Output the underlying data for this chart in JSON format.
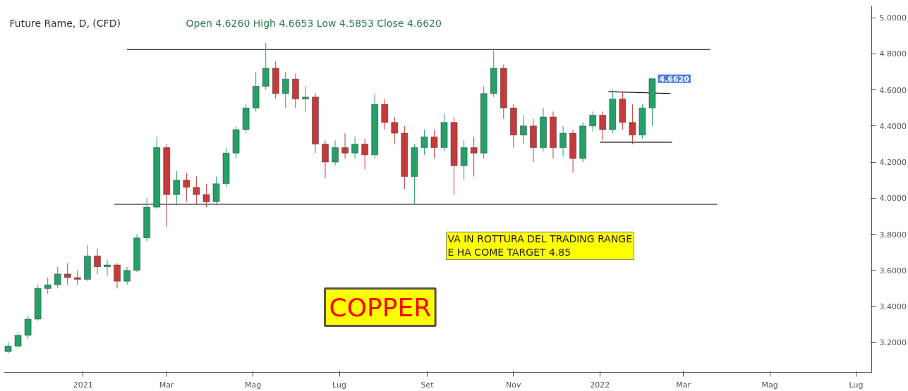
{
  "chart_data": {
    "type": "candlestick",
    "title": "Future Rame, D, (CFD)",
    "x": [
      "2020-11-09",
      "2020-11-16",
      "2020-11-23",
      "2020-11-30",
      "2020-12-07",
      "2020-12-14",
      "2020-12-21",
      "2020-12-28",
      "2021-01-04",
      "2021-01-11",
      "2021-01-18",
      "2021-01-25",
      "2021-02-01",
      "2021-02-08",
      "2021-02-15",
      "2021-02-22",
      "2021-03-01",
      "2021-03-08",
      "2021-03-15",
      "2021-03-22",
      "2021-03-29",
      "2021-04-05",
      "2021-04-12",
      "2021-04-19",
      "2021-04-26",
      "2021-05-03",
      "2021-05-10",
      "2021-05-17",
      "2021-05-24",
      "2021-05-31",
      "2021-06-07",
      "2021-06-14",
      "2021-06-21",
      "2021-06-28",
      "2021-07-05",
      "2021-07-12",
      "2021-07-19",
      "2021-07-26",
      "2021-08-02",
      "2021-08-09",
      "2021-08-16",
      "2021-08-23",
      "2021-08-30",
      "2021-09-06",
      "2021-09-13",
      "2021-09-20",
      "2021-09-27",
      "2021-10-04",
      "2021-10-11",
      "2021-10-18",
      "2021-10-25",
      "2021-11-01",
      "2021-11-08",
      "2021-11-15",
      "2021-11-22",
      "2021-11-29",
      "2021-12-06",
      "2021-12-13",
      "2021-12-20",
      "2021-12-27",
      "2022-01-03",
      "2022-01-10",
      "2022-01-17",
      "2022-01-24",
      "2022-01-31",
      "2022-02-07"
    ],
    "ohlc": [
      [
        3.15,
        3.2,
        3.14,
        3.18
      ],
      [
        3.18,
        3.26,
        3.17,
        3.24
      ],
      [
        3.24,
        3.35,
        3.22,
        3.33
      ],
      [
        3.33,
        3.52,
        3.32,
        3.5
      ],
      [
        3.5,
        3.56,
        3.47,
        3.52
      ],
      [
        3.52,
        3.62,
        3.5,
        3.58
      ],
      [
        3.58,
        3.64,
        3.52,
        3.56
      ],
      [
        3.56,
        3.6,
        3.52,
        3.55
      ],
      [
        3.55,
        3.74,
        3.54,
        3.68
      ],
      [
        3.68,
        3.72,
        3.58,
        3.62
      ],
      [
        3.62,
        3.66,
        3.57,
        3.63
      ],
      [
        3.63,
        3.64,
        3.5,
        3.54
      ],
      [
        3.54,
        3.62,
        3.52,
        3.6
      ],
      [
        3.6,
        3.8,
        3.59,
        3.78
      ],
      [
        3.78,
        4.0,
        3.76,
        3.95
      ],
      [
        3.95,
        4.34,
        3.94,
        4.28
      ],
      [
        4.28,
        4.3,
        3.84,
        4.02
      ],
      [
        4.02,
        4.15,
        3.96,
        4.1
      ],
      [
        4.1,
        4.14,
        3.98,
        4.06
      ],
      [
        4.06,
        4.12,
        3.97,
        4.02
      ],
      [
        4.02,
        4.08,
        3.95,
        3.98
      ],
      [
        3.98,
        4.12,
        3.97,
        4.08
      ],
      [
        4.08,
        4.28,
        4.06,
        4.25
      ],
      [
        4.25,
        4.4,
        4.22,
        4.38
      ],
      [
        4.38,
        4.52,
        4.36,
        4.5
      ],
      [
        4.5,
        4.7,
        4.48,
        4.62
      ],
      [
        4.62,
        4.86,
        4.6,
        4.72
      ],
      [
        4.72,
        4.76,
        4.55,
        4.58
      ],
      [
        4.58,
        4.7,
        4.5,
        4.66
      ],
      [
        4.66,
        4.69,
        4.5,
        4.55
      ],
      [
        4.55,
        4.62,
        4.48,
        4.56
      ],
      [
        4.56,
        4.58,
        4.25,
        4.3
      ],
      [
        4.3,
        4.32,
        4.11,
        4.2
      ],
      [
        4.2,
        4.32,
        4.18,
        4.28
      ],
      [
        4.28,
        4.36,
        4.22,
        4.25
      ],
      [
        4.25,
        4.34,
        4.22,
        4.3
      ],
      [
        4.3,
        4.33,
        4.16,
        4.24
      ],
      [
        4.24,
        4.58,
        4.22,
        4.52
      ],
      [
        4.52,
        4.55,
        4.38,
        4.42
      ],
      [
        4.42,
        4.45,
        4.3,
        4.36
      ],
      [
        4.36,
        4.4,
        4.05,
        4.12
      ],
      [
        4.12,
        4.3,
        3.97,
        4.28
      ],
      [
        4.28,
        4.38,
        4.24,
        4.34
      ],
      [
        4.34,
        4.38,
        4.22,
        4.28
      ],
      [
        4.28,
        4.47,
        4.26,
        4.42
      ],
      [
        4.42,
        4.45,
        4.02,
        4.18
      ],
      [
        4.18,
        4.32,
        4.1,
        4.28
      ],
      [
        4.28,
        4.34,
        4.12,
        4.25
      ],
      [
        4.25,
        4.62,
        4.22,
        4.58
      ],
      [
        4.58,
        4.82,
        4.56,
        4.72
      ],
      [
        4.72,
        4.74,
        4.44,
        4.5
      ],
      [
        4.5,
        4.52,
        4.28,
        4.35
      ],
      [
        4.35,
        4.46,
        4.3,
        4.4
      ],
      [
        4.4,
        4.44,
        4.2,
        4.28
      ],
      [
        4.28,
        4.5,
        4.26,
        4.45
      ],
      [
        4.45,
        4.48,
        4.22,
        4.28
      ],
      [
        4.28,
        4.4,
        4.23,
        4.36
      ],
      [
        4.36,
        4.38,
        4.14,
        4.22
      ],
      [
        4.22,
        4.42,
        4.2,
        4.4
      ],
      [
        4.4,
        4.48,
        4.37,
        4.46
      ],
      [
        4.46,
        4.48,
        4.32,
        4.38
      ],
      [
        4.38,
        4.6,
        4.36,
        4.55
      ],
      [
        4.55,
        4.59,
        4.38,
        4.42
      ],
      [
        4.42,
        4.52,
        4.3,
        4.35
      ],
      [
        4.35,
        4.52,
        4.33,
        4.5
      ],
      [
        4.5,
        4.6653,
        4.4,
        4.662
      ]
    ],
    "colors": [
      "#26a069",
      "#26a069",
      "#26a069",
      "#26a069",
      "#26a069",
      "#26a069",
      "#c53a3a",
      "#c53a3a",
      "#26a069",
      "#c53a3a",
      "#26a069",
      "#c53a3a",
      "#26a069",
      "#26a069",
      "#26a069",
      "#26a069",
      "#c53a3a",
      "#26a069",
      "#c53a3a",
      "#c53a3a",
      "#c53a3a",
      "#26a069",
      "#26a069",
      "#26a069",
      "#26a069",
      "#26a069",
      "#26a069",
      "#c53a3a",
      "#26a069",
      "#c53a3a",
      "#26a069",
      "#c53a3a",
      "#c53a3a",
      "#26a069",
      "#c53a3a",
      "#26a069",
      "#c53a3a",
      "#26a069",
      "#c53a3a",
      "#c53a3a",
      "#c53a3a",
      "#26a069",
      "#26a069",
      "#c53a3a",
      "#26a069",
      "#c53a3a",
      "#26a069",
      "#c53a3a",
      "#26a069",
      "#26a069",
      "#c53a3a",
      "#c53a3a",
      "#26a069",
      "#c53a3a",
      "#26a069",
      "#c53a3a",
      "#26a069",
      "#c53a3a",
      "#26a069",
      "#26a069",
      "#c53a3a",
      "#26a069",
      "#c53a3a",
      "#c53a3a",
      "#26a069",
      "#26a069"
    ],
    "series": [
      {
        "type": "line",
        "color": "#000000",
        "x": [
          "2021-02-01",
          "2022-03-20"
        ],
        "values": [
          4.824,
          4.824
        ]
      },
      {
        "type": "line",
        "color": "#000000",
        "x": [
          "2021-01-23",
          "2022-03-25"
        ],
        "values": [
          3.966,
          3.966
        ]
      },
      {
        "type": "line",
        "color": "#000000",
        "x": [
          "2022-01-07",
          "2022-02-20"
        ],
        "values": [
          4.59,
          4.58
        ]
      },
      {
        "type": "line",
        "color": "#000000",
        "x": [
          "2022-01-01",
          "2022-02-21"
        ],
        "values": [
          4.31,
          4.31
        ]
      }
    ],
    "annotations": [
      "Open 4.6260   High 4.6653   Low 4.5853   Close 4.6620",
      "VA IN ROTTURA DEL TRADING RANGE\nE HA COME TARGET 4.85",
      "COPPER",
      {
        "text": "4.6620",
        "x": "2022-02-11",
        "y": 4.662
      }
    ],
    "xlim": [
      "2020-11-06",
      "2022-07-12"
    ],
    "xticks": [
      {
        "value": "2021-01-01",
        "label": "2021"
      },
      {
        "value": "2021-03-01",
        "label": "Mar"
      },
      {
        "value": "2021-05-01",
        "label": "Mag"
      },
      {
        "value": "2021-07-01",
        "label": "Lug"
      },
      {
        "value": "2021-09-01",
        "label": "Set"
      },
      {
        "value": "2021-11-01",
        "label": "Nov"
      },
      {
        "value": "2022-01-01",
        "label": "2022"
      },
      {
        "value": "2022-03-01",
        "label": "Mar"
      },
      {
        "value": "2022-05-01",
        "label": "Mag"
      },
      {
        "value": "2022-07-01",
        "label": "Lug"
      }
    ],
    "ylim": [
      3.035,
      5.065
    ],
    "yticks": [
      {
        "value": 3.2,
        "label": "3.2000"
      },
      {
        "value": 3.4,
        "label": "3.4000"
      },
      {
        "value": 3.6,
        "label": "3.6000"
      },
      {
        "value": 3.8,
        "label": "3.8000"
      },
      {
        "value": 4.0,
        "label": "4.0000"
      },
      {
        "value": 4.2,
        "label": "4.2000"
      },
      {
        "value": 4.4,
        "label": "4.4000"
      },
      {
        "value": 4.6,
        "label": "4.6000"
      },
      {
        "value": 4.8,
        "label": "4.8000"
      },
      {
        "value": 5.0,
        "label": "5.0000"
      }
    ],
    "grid": false
  }
}
